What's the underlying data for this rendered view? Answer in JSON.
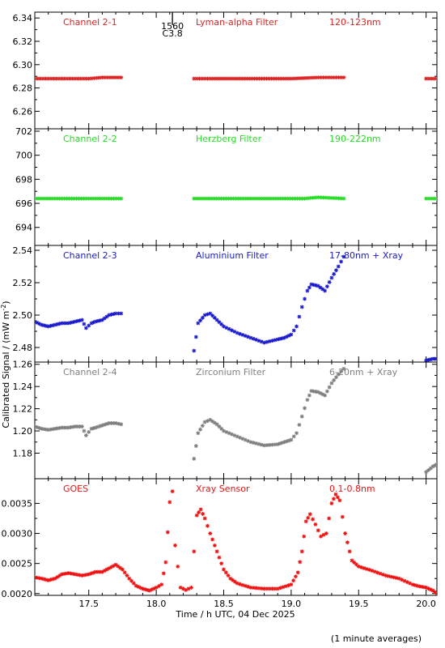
{
  "xlabel": "Time / h UTC, 04 Dec 2025",
  "ylabel": "Calibrated Signal / (mW m",
  "ylabel_sup": "-2",
  "ylabel_end": ")",
  "note": "(1 minute averages)",
  "flare_marker": {
    "time": 18.12,
    "line1": "1560",
    "line2": "C3.8"
  },
  "xaxis": {
    "range": [
      17.1,
      20.08
    ],
    "ticks": [
      17.5,
      18.0,
      18.5,
      19.0,
      19.5,
      20.0
    ],
    "tick_labels": [
      "17.5",
      "18.0",
      "18.5",
      "19.0",
      "19.5",
      "20.0"
    ]
  },
  "chart_data": [
    {
      "type": "scatter",
      "channel": "Channel 2-1",
      "filter": "Lyman-alpha Filter",
      "band": "120-123nm",
      "color": "#dd2222",
      "ylim": [
        6.245,
        6.345
      ],
      "yticks": [
        6.26,
        6.28,
        6.3,
        6.32,
        6.34
      ],
      "ytick_labels": [
        "6.26",
        "6.28",
        "6.30",
        "6.32",
        "6.34"
      ],
      "x": [
        17.1,
        17.2,
        17.3,
        17.4,
        17.5,
        17.6,
        17.74,
        18.28,
        18.4,
        18.6,
        18.8,
        19.0,
        19.2,
        19.39,
        20.0,
        20.08
      ],
      "y": [
        6.288,
        6.288,
        6.288,
        6.288,
        6.288,
        6.289,
        6.289,
        6.288,
        6.288,
        6.288,
        6.288,
        6.288,
        6.289,
        6.289,
        6.288,
        6.288
      ],
      "gaps_after": [
        17.74,
        19.39
      ]
    },
    {
      "type": "scatter",
      "channel": "Channel 2-2",
      "filter": "Herzberg Filter",
      "band": "190-222nm",
      "color": "#22dd22",
      "ylim": [
        692.5,
        702.2
      ],
      "yticks": [
        694,
        696,
        698,
        700,
        702
      ],
      "ytick_labels": [
        "694",
        "696",
        "698",
        "700",
        "702"
      ],
      "x": [
        17.1,
        17.3,
        17.5,
        17.74,
        18.28,
        18.5,
        18.7,
        18.9,
        19.1,
        19.2,
        19.39,
        20.0,
        20.08
      ],
      "y": [
        696.4,
        696.4,
        696.4,
        696.4,
        696.4,
        696.4,
        696.4,
        696.4,
        696.4,
        696.5,
        696.4,
        696.4,
        696.4
      ],
      "gaps_after": [
        17.74,
        19.39
      ]
    },
    {
      "type": "scatter",
      "channel": "Channel 2-3",
      "filter": "Aluminium Filter",
      "band": "17-80nm + Xray",
      "color": "#1a1acc",
      "ylim": [
        2.471,
        2.543
      ],
      "yticks": [
        2.48,
        2.5,
        2.52,
        2.54
      ],
      "ytick_labels": [
        "2.48",
        "2.50",
        "2.52",
        "2.54"
      ],
      "x": [
        17.1,
        17.15,
        17.2,
        17.25,
        17.3,
        17.35,
        17.4,
        17.45,
        17.48,
        17.52,
        17.55,
        17.6,
        17.65,
        17.7,
        17.74,
        18.28,
        18.31,
        18.36,
        18.4,
        18.45,
        18.5,
        18.6,
        18.7,
        18.8,
        18.9,
        18.95,
        19.0,
        19.04,
        19.08,
        19.12,
        19.15,
        19.2,
        19.25,
        19.3,
        19.35,
        19.39,
        20.0,
        20.05,
        20.08
      ],
      "y": [
        2.496,
        2.494,
        2.493,
        2.494,
        2.495,
        2.495,
        2.496,
        2.497,
        2.492,
        2.495,
        2.496,
        2.497,
        2.5,
        2.501,
        2.501,
        2.478,
        2.495,
        2.5,
        2.501,
        2.497,
        2.493,
        2.489,
        2.486,
        2.483,
        2.485,
        2.486,
        2.488,
        2.493,
        2.505,
        2.515,
        2.519,
        2.518,
        2.515,
        2.523,
        2.53,
        2.536,
        2.472,
        2.473,
        2.473
      ],
      "gaps_after": [
        17.74,
        19.39
      ]
    },
    {
      "type": "scatter",
      "channel": "Channel 2-4",
      "filter": "Zirconium Filter",
      "band": "6-20nm + Xray",
      "color": "#7f7f7f",
      "ylim": [
        1.157,
        1.262
      ],
      "yticks": [
        1.18,
        1.2,
        1.22,
        1.24,
        1.26
      ],
      "ytick_labels": [
        "1.18",
        "1.20",
        "1.22",
        "1.24",
        "1.26"
      ],
      "x": [
        17.1,
        17.15,
        17.2,
        17.25,
        17.3,
        17.35,
        17.4,
        17.45,
        17.48,
        17.52,
        17.55,
        17.6,
        17.65,
        17.7,
        17.74,
        18.28,
        18.31,
        18.36,
        18.4,
        18.45,
        18.5,
        18.6,
        18.7,
        18.8,
        18.9,
        18.95,
        19.0,
        19.04,
        19.08,
        19.12,
        19.15,
        19.2,
        19.25,
        19.3,
        19.35,
        19.39,
        20.0,
        20.05,
        20.08
      ],
      "y": [
        1.204,
        1.202,
        1.201,
        1.202,
        1.203,
        1.203,
        1.204,
        1.204,
        1.196,
        1.202,
        1.203,
        1.205,
        1.207,
        1.207,
        1.206,
        1.175,
        1.198,
        1.208,
        1.21,
        1.206,
        1.2,
        1.195,
        1.19,
        1.187,
        1.188,
        1.19,
        1.192,
        1.198,
        1.213,
        1.228,
        1.236,
        1.235,
        1.232,
        1.243,
        1.251,
        1.256,
        1.163,
        1.168,
        1.17
      ],
      "gaps_after": [
        17.74,
        19.39
      ]
    },
    {
      "type": "scatter",
      "channel": "GOES",
      "filter": "Xray Sensor",
      "band": "0.1-0.8nm",
      "color": "#ee1111",
      "ylim": [
        0.00197,
        0.00391
      ],
      "yticks": [
        0.002,
        0.0025,
        0.003,
        0.0035
      ],
      "ytick_labels": [
        "0.0020",
        "0.0025",
        "0.0030",
        "0.0035"
      ],
      "x": [
        17.1,
        17.15,
        17.2,
        17.25,
        17.3,
        17.35,
        17.4,
        17.45,
        17.5,
        17.55,
        17.6,
        17.65,
        17.7,
        17.75,
        17.8,
        17.85,
        17.9,
        17.95,
        18.0,
        18.04,
        18.07,
        18.1,
        18.12,
        18.14,
        18.18,
        18.22,
        18.26,
        18.3,
        18.33,
        18.36,
        18.4,
        18.45,
        18.5,
        18.55,
        18.6,
        18.7,
        18.8,
        18.9,
        19.0,
        19.05,
        19.08,
        19.11,
        19.14,
        19.18,
        19.22,
        19.26,
        19.3,
        19.33,
        19.36,
        19.4,
        19.45,
        19.5,
        19.6,
        19.7,
        19.8,
        19.9,
        19.95,
        20.0,
        20.05,
        20.08
      ],
      "y": [
        0.00227,
        0.00225,
        0.00222,
        0.00225,
        0.00232,
        0.00234,
        0.00232,
        0.0023,
        0.00232,
        0.00236,
        0.00236,
        0.00242,
        0.00248,
        0.0024,
        0.00225,
        0.00213,
        0.00208,
        0.00205,
        0.0021,
        0.00215,
        0.00252,
        0.00352,
        0.0037,
        0.0028,
        0.0021,
        0.00206,
        0.0021,
        0.0033,
        0.0034,
        0.00325,
        0.003,
        0.0027,
        0.0024,
        0.00225,
        0.00217,
        0.0021,
        0.00208,
        0.00208,
        0.00215,
        0.00235,
        0.0027,
        0.0032,
        0.00332,
        0.00315,
        0.00295,
        0.003,
        0.0035,
        0.00365,
        0.00355,
        0.003,
        0.00255,
        0.00245,
        0.00238,
        0.0023,
        0.00225,
        0.00215,
        0.00212,
        0.0021,
        0.00205,
        0.002
      ],
      "gaps_after": []
    }
  ]
}
